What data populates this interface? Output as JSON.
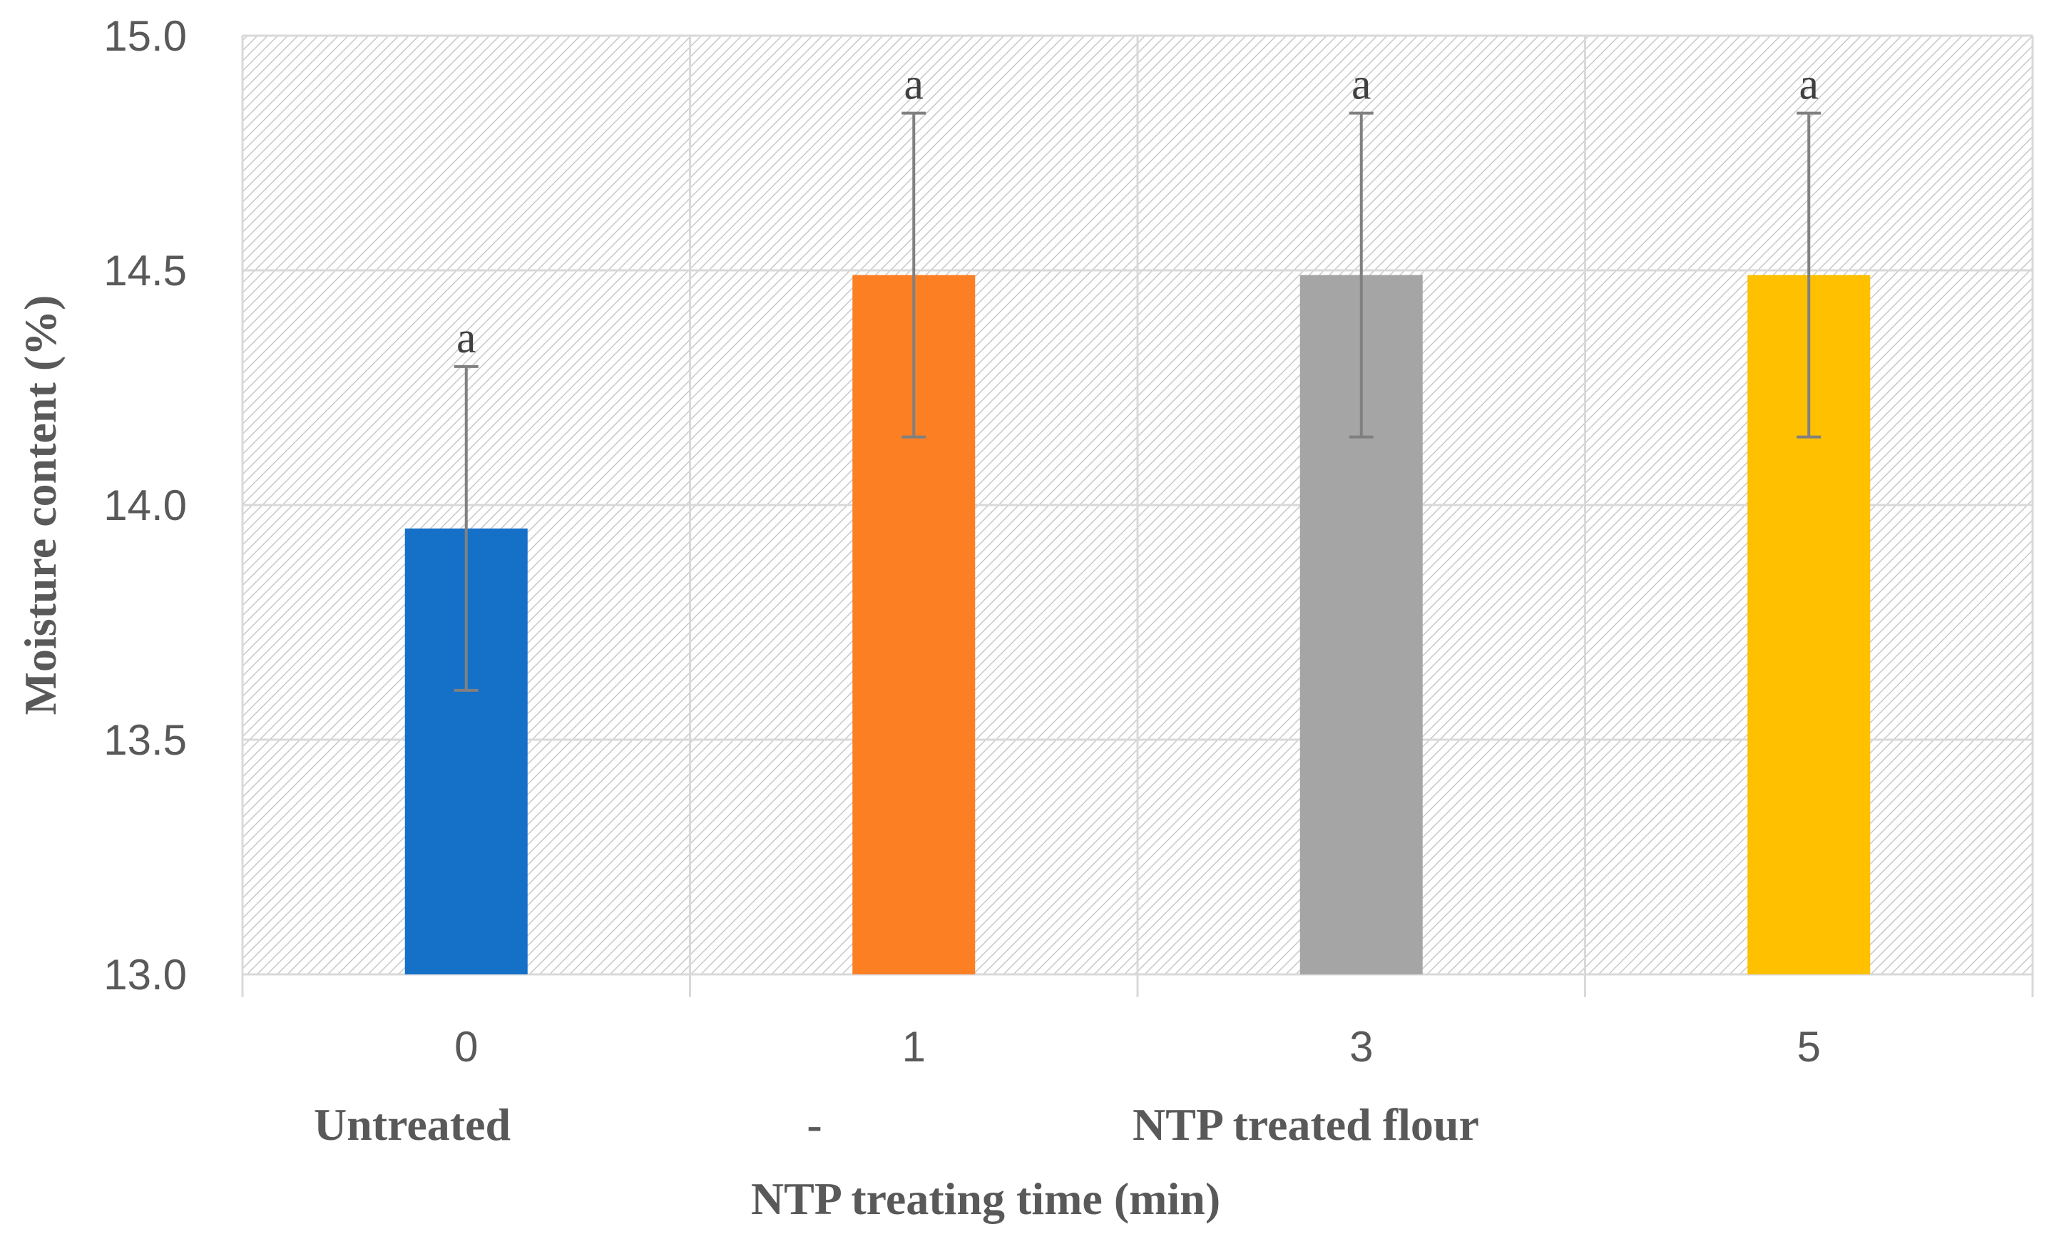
{
  "chart_data": {
    "type": "bar",
    "title": "",
    "xlabel": "NTP treating time (min)",
    "ylabel": "Moisture content (%)",
    "ylim": [
      13.0,
      15.0
    ],
    "yticks": [
      "13.0",
      "13.5",
      "14.0",
      "14.5",
      "15.0"
    ],
    "ytick_values": [
      13.0,
      13.5,
      14.0,
      14.5,
      15.0
    ],
    "categories": [
      "0",
      "1",
      "3",
      "5"
    ],
    "values": [
      13.95,
      14.49,
      14.49,
      14.49
    ],
    "error": [
      0.345,
      0.345,
      0.345,
      0.345
    ],
    "significance": [
      "a",
      "a",
      "a",
      "a"
    ],
    "colors": [
      "#1570C8",
      "#FD7F23",
      "#A5A5A5",
      "#FFC000"
    ],
    "group_labels": {
      "untreated": "Untreated",
      "dash": "-",
      "treated": "NTP treated flour"
    },
    "grid": true,
    "legend": "none"
  }
}
